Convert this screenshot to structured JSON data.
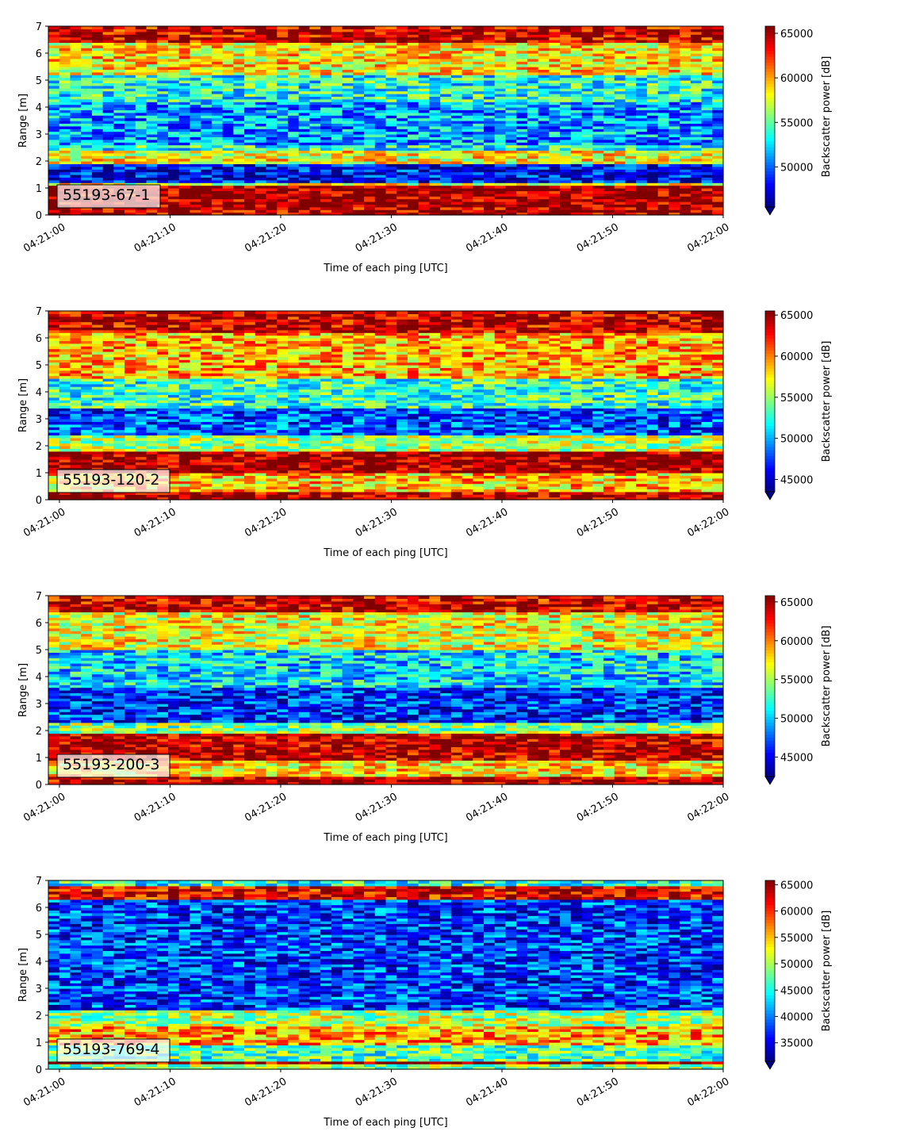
{
  "chart_data": [
    {
      "type": "heatmap",
      "annotation": "55193-67-1",
      "xlabel": "Time of each ping [UTC]",
      "ylabel": "Range [m]",
      "colorbar_label": "Backscatter power [dB]",
      "colormap": "jet",
      "x_ticks": [
        "04:21:00",
        "04:21:10",
        "04:21:20",
        "04:21:30",
        "04:21:40",
        "04:21:50",
        "04:22:00"
      ],
      "y_ticks": [
        0,
        1,
        2,
        3,
        4,
        5,
        6,
        7
      ],
      "ylim": [
        0,
        7
      ],
      "xlim": [
        "04:20:59",
        "04:22:00"
      ],
      "clim": [
        45500,
        65800
      ],
      "colorbar_ticks": [
        50000,
        55000,
        60000,
        65000
      ],
      "colorbar_tick_labels": [
        "50000",
        "55000",
        "60000",
        "65000"
      ],
      "colorbar_extend": "min",
      "bands": [
        {
          "range": [
            0.0,
            0.3
          ],
          "level": 0.95
        },
        {
          "range": [
            0.3,
            1.1
          ],
          "level": 0.97
        },
        {
          "range": [
            1.1,
            1.25
          ],
          "level": 0.6
        },
        {
          "range": [
            1.25,
            1.9
          ],
          "level": 0.12
        },
        {
          "range": [
            1.9,
            2.4
          ],
          "level": 0.62
        },
        {
          "range": [
            2.4,
            2.65
          ],
          "level": 0.4
        },
        {
          "range": [
            2.65,
            4.2
          ],
          "level": 0.28
        },
        {
          "range": [
            4.2,
            5.2
          ],
          "level": 0.4
        },
        {
          "range": [
            5.2,
            6.4
          ],
          "level": 0.65
        },
        {
          "range": [
            6.4,
            7.0
          ],
          "level": 0.92
        }
      ]
    },
    {
      "type": "heatmap",
      "annotation": "55193-120-2",
      "xlabel": "Time of each ping [UTC]",
      "ylabel": "Range [m]",
      "colorbar_label": "Backscatter power [dB]",
      "colormap": "jet",
      "x_ticks": [
        "04:21:00",
        "04:21:10",
        "04:21:20",
        "04:21:30",
        "04:21:40",
        "04:21:50",
        "04:22:00"
      ],
      "y_ticks": [
        0,
        1,
        2,
        3,
        4,
        5,
        6,
        7
      ],
      "ylim": [
        0,
        7
      ],
      "xlim": [
        "04:20:59",
        "04:22:00"
      ],
      "clim": [
        43500,
        65500
      ],
      "colorbar_ticks": [
        45000,
        50000,
        55000,
        60000,
        65000
      ],
      "colorbar_tick_labels": [
        "45000",
        "50000",
        "55000",
        "60000",
        "65000"
      ],
      "colorbar_extend": "min",
      "bands": [
        {
          "range": [
            0.0,
            0.35
          ],
          "level": 0.96
        },
        {
          "range": [
            0.35,
            1.05
          ],
          "level": 0.68
        },
        {
          "range": [
            1.05,
            1.85
          ],
          "level": 0.97
        },
        {
          "range": [
            1.85,
            2.4
          ],
          "level": 0.55
        },
        {
          "range": [
            2.4,
            3.4
          ],
          "level": 0.2
        },
        {
          "range": [
            3.4,
            4.5
          ],
          "level": 0.42
        },
        {
          "range": [
            4.5,
            6.2
          ],
          "level": 0.7
        },
        {
          "range": [
            6.2,
            7.0
          ],
          "level": 0.93
        }
      ]
    },
    {
      "type": "heatmap",
      "annotation": "55193-200-3",
      "xlabel": "Time of each ping [UTC]",
      "ylabel": "Range [m]",
      "colorbar_label": "Backscatter power [dB]",
      "colormap": "jet",
      "x_ticks": [
        "04:21:00",
        "04:21:10",
        "04:21:20",
        "04:21:30",
        "04:21:40",
        "04:21:50",
        "04:22:00"
      ],
      "y_ticks": [
        0,
        1,
        2,
        3,
        4,
        5,
        6,
        7
      ],
      "ylim": [
        0,
        7
      ],
      "xlim": [
        "04:20:59",
        "04:22:00"
      ],
      "clim": [
        42500,
        65800
      ],
      "colorbar_ticks": [
        45000,
        50000,
        55000,
        60000,
        65000
      ],
      "colorbar_tick_labels": [
        "45000",
        "50000",
        "55000",
        "60000",
        "65000"
      ],
      "colorbar_extend": "min",
      "bands": [
        {
          "range": [
            0.0,
            0.35
          ],
          "level": 0.95
        },
        {
          "range": [
            0.35,
            0.95
          ],
          "level": 0.66
        },
        {
          "range": [
            0.95,
            1.9
          ],
          "level": 0.95
        },
        {
          "range": [
            1.9,
            2.3
          ],
          "level": 0.5
        },
        {
          "range": [
            2.3,
            3.6
          ],
          "level": 0.16
        },
        {
          "range": [
            3.6,
            5.0
          ],
          "level": 0.35
        },
        {
          "range": [
            5.0,
            6.4
          ],
          "level": 0.62
        },
        {
          "range": [
            6.4,
            7.0
          ],
          "level": 0.92
        }
      ]
    },
    {
      "type": "heatmap",
      "annotation": "55193-769-4",
      "xlabel": "Time of each ping [UTC]",
      "ylabel": "Range [m]",
      "colorbar_label": "Backscatter power [dB]",
      "colormap": "jet",
      "x_ticks": [
        "04:21:00",
        "04:21:10",
        "04:21:20",
        "04:21:30",
        "04:21:40",
        "04:21:50",
        "04:22:00"
      ],
      "y_ticks": [
        0,
        1,
        2,
        3,
        4,
        5,
        6,
        7
      ],
      "ylim": [
        0,
        7
      ],
      "xlim": [
        "04:20:59",
        "04:22:00"
      ],
      "clim": [
        31500,
        65800
      ],
      "colorbar_ticks": [
        35000,
        40000,
        45000,
        50000,
        55000,
        60000,
        65000
      ],
      "colorbar_tick_labels": [
        "35000",
        "40000",
        "45000",
        "50000",
        "55000",
        "60000",
        "65000"
      ],
      "colorbar_extend": "min",
      "bands": [
        {
          "range": [
            0.0,
            0.22
          ],
          "level": 0.5
        },
        {
          "range": [
            0.22,
            0.32
          ],
          "level": 0.96
        },
        {
          "range": [
            0.32,
            0.9
          ],
          "level": 0.45
        },
        {
          "range": [
            0.9,
            1.6
          ],
          "level": 0.72
        },
        {
          "range": [
            1.6,
            2.2
          ],
          "level": 0.55
        },
        {
          "range": [
            2.2,
            6.3
          ],
          "level": 0.18
        },
        {
          "range": [
            6.3,
            6.8
          ],
          "level": 0.9
        },
        {
          "range": [
            6.8,
            7.0
          ],
          "level": 0.42
        }
      ]
    }
  ]
}
